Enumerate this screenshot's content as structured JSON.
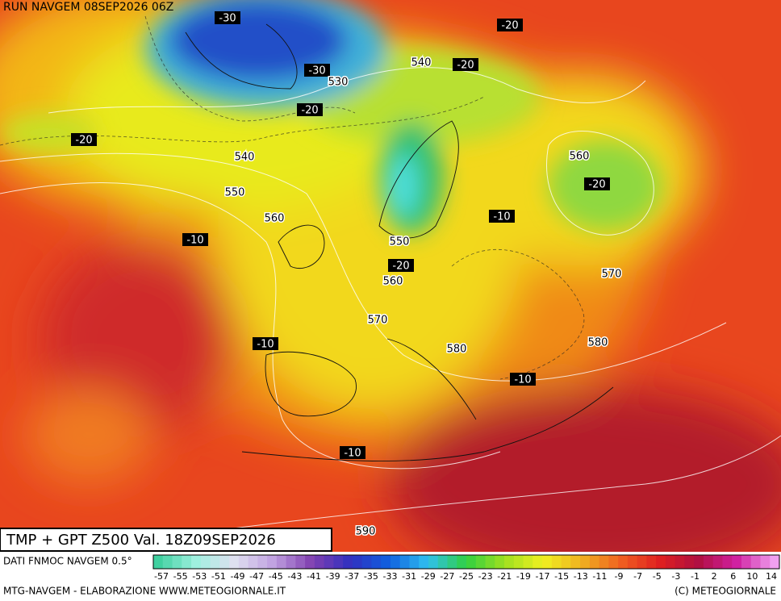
{
  "header": {
    "run": "RUN NAVGEM 08SEP2026 06Z"
  },
  "map": {
    "title": "TMP + GPT Z500 Val. 18Z09SEP2026",
    "labels": [
      "-30",
      "-20",
      "540",
      "-20",
      "-30",
      "530",
      "-20",
      "-20",
      "540",
      "560",
      "-20",
      "550",
      "-10",
      "560",
      "-10",
      "550",
      "-20",
      "560",
      "570",
      "570",
      "-10",
      "580",
      "580",
      "-10",
      "-10",
      "590"
    ]
  },
  "legend": {
    "source": "DATI FNMOC NAVGEM 0.5°",
    "scale": [
      "-57",
      "-55",
      "-53",
      "-51",
      "-49",
      "-47",
      "-45",
      "-43",
      "-41",
      "-39",
      "-37",
      "-35",
      "-33",
      "-31",
      "-29",
      "-27",
      "-25",
      "-23",
      "-21",
      "-19",
      "-17",
      "-15",
      "-13",
      "-11",
      "-9",
      "-7",
      "-5",
      "-3",
      "-1",
      "2",
      "6",
      "10",
      "14"
    ]
  },
  "footer": {
    "left": "MTG-NAVGEM - ELABORAZIONE WWW.METEOGIORNALE.IT",
    "right": "(C) METEOGIORNALE"
  }
}
